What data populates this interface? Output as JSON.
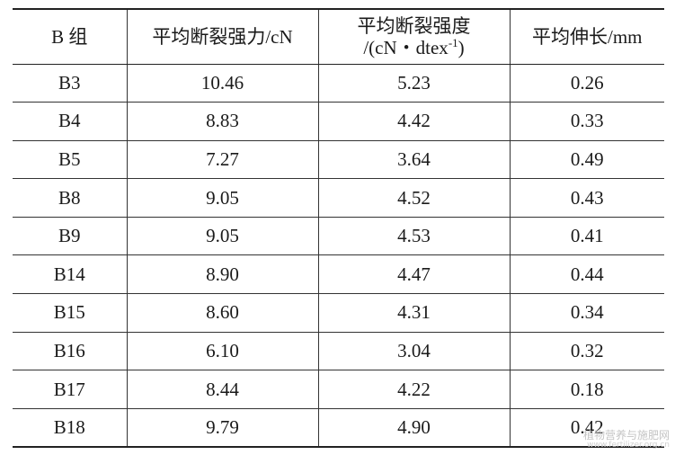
{
  "table": {
    "headers": {
      "group": "B 组",
      "force": "平均断裂强力/cN",
      "tenacity_line1": "平均断裂强度",
      "tenacity_line2_pre": "/(cN・dtex",
      "tenacity_sup": "-1",
      "tenacity_line2_post": ")",
      "elongation": "平均伸长/mm"
    },
    "rows": [
      {
        "group": "B3",
        "force": "10.46",
        "tenacity": "5.23",
        "elongation": "0.26"
      },
      {
        "group": "B4",
        "force": "8.83",
        "tenacity": "4.42",
        "elongation": "0.33"
      },
      {
        "group": "B5",
        "force": "7.27",
        "tenacity": "3.64",
        "elongation": "0.49"
      },
      {
        "group": "B8",
        "force": "9.05",
        "tenacity": "4.52",
        "elongation": "0.43"
      },
      {
        "group": "B9",
        "force": "9.05",
        "tenacity": "4.53",
        "elongation": "0.41"
      },
      {
        "group": "B14",
        "force": "8.90",
        "tenacity": "4.47",
        "elongation": "0.44"
      },
      {
        "group": "B15",
        "force": "8.60",
        "tenacity": "4.31",
        "elongation": "0.34"
      },
      {
        "group": "B16",
        "force": "6.10",
        "tenacity": "3.04",
        "elongation": "0.32"
      },
      {
        "group": "B17",
        "force": "8.44",
        "tenacity": "4.22",
        "elongation": "0.18"
      },
      {
        "group": "B18",
        "force": "9.79",
        "tenacity": "4.90",
        "elongation": "0.42"
      }
    ]
  },
  "watermark": {
    "name": "植物营养与施肥网",
    "url": "www.fertilizer.org.cn"
  }
}
